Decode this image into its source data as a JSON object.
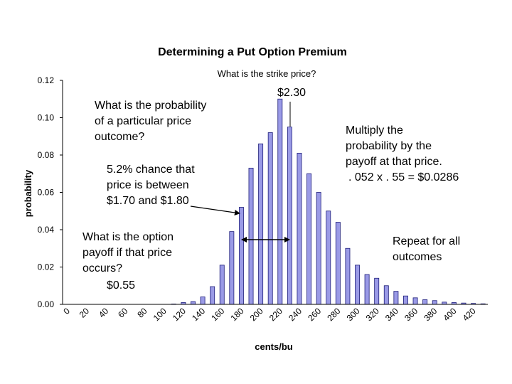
{
  "chart_data": {
    "type": "bar",
    "title": "Determining a Put Option Premium",
    "xlabel": "cents/bu",
    "ylabel": "probability",
    "ylim": [
      0,
      0.12
    ],
    "y_ticks": [
      "0.00",
      "0.02",
      "0.04",
      "0.06",
      "0.08",
      "0.10",
      "0.12"
    ],
    "x_tick_labels": [
      "0",
      "20",
      "40",
      "60",
      "80",
      "100",
      "120",
      "140",
      "160",
      "180",
      "200",
      "220",
      "240",
      "260",
      "280",
      "300",
      "320",
      "340",
      "360",
      "380",
      "400",
      "420"
    ],
    "grid": false,
    "bar_color": "#9a9ae6",
    "categories": [
      0,
      10,
      20,
      30,
      40,
      50,
      60,
      70,
      80,
      90,
      100,
      110,
      120,
      130,
      140,
      150,
      160,
      170,
      180,
      190,
      200,
      210,
      220,
      230,
      240,
      250,
      260,
      270,
      280,
      290,
      300,
      310,
      320,
      330,
      340,
      350,
      360,
      370,
      380,
      390,
      400,
      410,
      420,
      430
    ],
    "values": [
      0,
      0,
      0,
      0,
      0,
      0,
      0,
      0,
      0,
      0,
      0,
      0.0002,
      0.001,
      0.0015,
      0.004,
      0.0095,
      0.021,
      0.039,
      0.052,
      0.073,
      0.086,
      0.092,
      0.11,
      0.095,
      0.081,
      0.07,
      0.06,
      0.05,
      0.044,
      0.03,
      0.021,
      0.016,
      0.014,
      0.01,
      0.007,
      0.0045,
      0.0035,
      0.0025,
      0.002,
      0.0012,
      0.001,
      0.0007,
      0.0005,
      0.0003
    ]
  },
  "annotations": {
    "strike_question": "What is the strike price?",
    "strike_value": "$2.30",
    "prob_question": [
      "What is the probability",
      "of a particular price",
      "outcome?"
    ],
    "prob_answer": [
      "5.2% chance that",
      "price is between",
      "$1.70 and $1.80"
    ],
    "payoff_question": [
      "What is the option",
      "payoff if that price",
      "occurs?"
    ],
    "payoff_value": "$0.55",
    "multiply_note": [
      "Multiply the",
      "probability by the",
      "payoff at that price.",
      ". 052 x . 55 = $0.0286"
    ],
    "repeat_note": [
      "Repeat for all",
      "outcomes"
    ]
  }
}
